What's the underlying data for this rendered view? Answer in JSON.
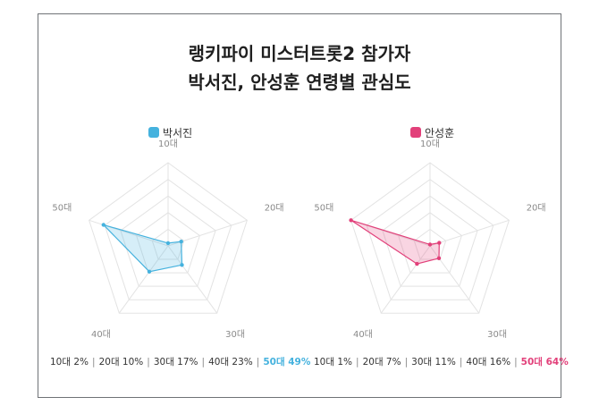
{
  "title": {
    "line1": "랭키파이 미스터트롯2 참가자",
    "line2": "박서진, 안성훈 연령별 관심도"
  },
  "chart_data": [
    {
      "type": "radar",
      "legend": "박서진",
      "color": "#45b2de",
      "axes": [
        "10대",
        "20대",
        "30대",
        "40대",
        "50대"
      ],
      "values": [
        2,
        10,
        17,
        23,
        49
      ],
      "summary": [
        {
          "label": "10대 2%"
        },
        {
          "label": "20대 10%"
        },
        {
          "label": "30대 17%"
        },
        {
          "label": "40대 23%"
        },
        {
          "label": "50대 49%",
          "highlight": true
        }
      ]
    },
    {
      "type": "radar",
      "legend": "안성훈",
      "color": "#e2407a",
      "axes": [
        "10대",
        "20대",
        "30대",
        "40대",
        "50대"
      ],
      "values": [
        1,
        7,
        11,
        16,
        64
      ],
      "summary": [
        {
          "label": "10대 1%"
        },
        {
          "label": "20대 7%"
        },
        {
          "label": "30대 11%"
        },
        {
          "label": "40대 16%"
        },
        {
          "label": "50대 64%",
          "highlight": true
        }
      ]
    }
  ]
}
